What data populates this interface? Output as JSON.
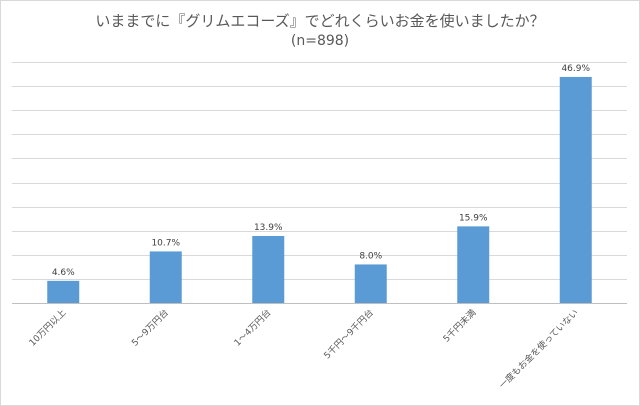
{
  "chart_data": {
    "type": "bar",
    "title": "いままでに『グリムエコーズ』でどれくらいお金を使いましたか？",
    "subtitle": "(n=898)",
    "categories": [
      "10万円以上",
      "5～9万円台",
      "1～4万円台",
      "5千円～9千円台",
      "5千円未満",
      "一度もお金を使っていない"
    ],
    "values": [
      4.6,
      10.7,
      13.9,
      8.0,
      15.9,
      46.9
    ],
    "data_labels": [
      "4.6%",
      "10.7%",
      "13.9%",
      "8.0%",
      "15.9%",
      "46.9%"
    ],
    "ylim": [
      0,
      50
    ],
    "grid": true,
    "bar_color": "#5b9bd5"
  }
}
